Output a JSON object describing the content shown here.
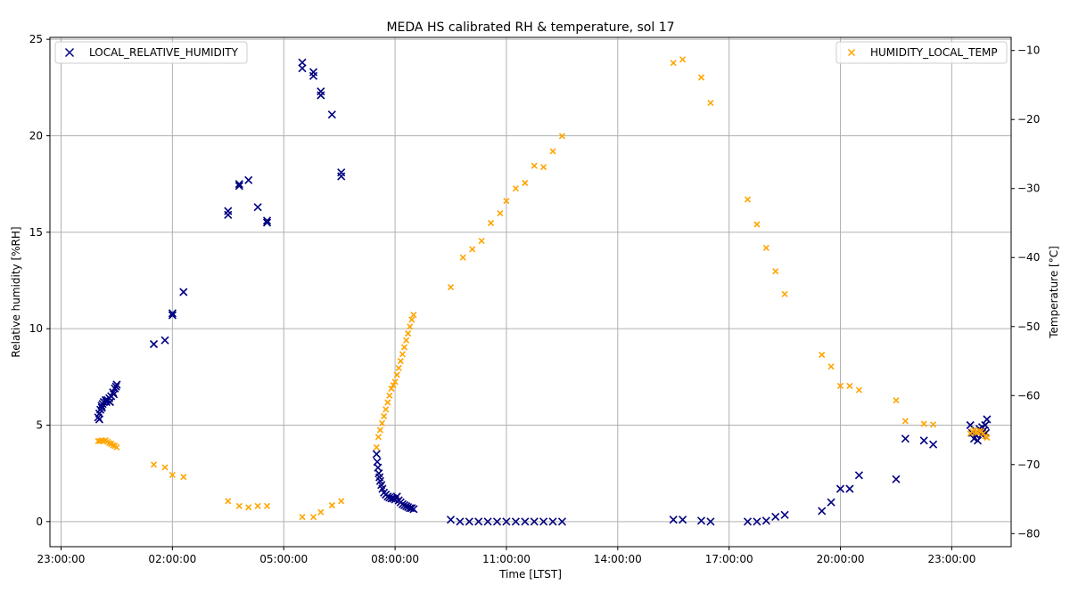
{
  "chart_data": {
    "type": "scatter",
    "title": "MEDA HS calibrated RH & temperature, sol 17",
    "xlabel": "Time [LTST]",
    "ylabel": "Relative humidity [%RH]",
    "y2label": "Temperature [$^\\circ$C]",
    "y2label_display": "Temperature [°C]",
    "x_unit": "hours LTST (continuous, 23:00 = 23.0, next-day times > 24)",
    "xlim": [
      22.7,
      48.6
    ],
    "ylim": [
      -1.3,
      25.1
    ],
    "y2lim": [
      -81.9,
      -8.1
    ],
    "x_ticks": [
      {
        "value": 23,
        "label": "23:00:00"
      },
      {
        "value": 26,
        "label": "02:00:00"
      },
      {
        "value": 29,
        "label": "05:00:00"
      },
      {
        "value": 32,
        "label": "08:00:00"
      },
      {
        "value": 35,
        "label": "11:00:00"
      },
      {
        "value": 38,
        "label": "14:00:00"
      },
      {
        "value": 41,
        "label": "17:00:00"
      },
      {
        "value": 44,
        "label": "20:00:00"
      },
      {
        "value": 47,
        "label": "23:00:00"
      }
    ],
    "y_ticks": [
      0,
      5,
      10,
      15,
      20,
      25
    ],
    "y2_ticks": [
      -80,
      -70,
      -60,
      -50,
      -40,
      -30,
      -20,
      -10
    ],
    "grid": true,
    "series": [
      {
        "name": "LOCAL_RELATIVE_HUMIDITY",
        "axis": "left",
        "marker": "x",
        "color": "#000080",
        "legend_position": "upper left",
        "points": [
          [
            24.0,
            5.4
          ],
          [
            24.03,
            5.6
          ],
          [
            24.06,
            5.8
          ],
          [
            24.09,
            6.0
          ],
          [
            24.12,
            6.1
          ],
          [
            24.15,
            6.2
          ],
          [
            24.2,
            6.3
          ],
          [
            24.25,
            6.3
          ],
          [
            24.3,
            6.4
          ],
          [
            24.35,
            6.5
          ],
          [
            24.4,
            6.7
          ],
          [
            24.45,
            6.9
          ],
          [
            24.5,
            7.1
          ],
          [
            24.03,
            5.3
          ],
          [
            24.1,
            5.9
          ],
          [
            24.22,
            6.2
          ],
          [
            24.32,
            6.2
          ],
          [
            24.42,
            6.6
          ],
          [
            24.48,
            7.0
          ],
          [
            25.5,
            9.2
          ],
          [
            25.8,
            9.4
          ],
          [
            26.0,
            10.8
          ],
          [
            26.0,
            10.7
          ],
          [
            26.3,
            11.9
          ],
          [
            27.5,
            15.9
          ],
          [
            27.5,
            16.1
          ],
          [
            27.8,
            17.5
          ],
          [
            27.8,
            17.4
          ],
          [
            28.05,
            17.7
          ],
          [
            28.3,
            16.3
          ],
          [
            28.55,
            15.5
          ],
          [
            28.55,
            15.6
          ],
          [
            29.5,
            23.8
          ],
          [
            29.5,
            23.5
          ],
          [
            29.8,
            23.3
          ],
          [
            29.8,
            23.1
          ],
          [
            30.0,
            22.3
          ],
          [
            30.0,
            22.1
          ],
          [
            30.3,
            21.1
          ],
          [
            30.55,
            18.1
          ],
          [
            30.55,
            17.9
          ],
          [
            31.5,
            3.5
          ],
          [
            31.52,
            3.1
          ],
          [
            31.54,
            2.8
          ],
          [
            31.56,
            2.5
          ],
          [
            31.58,
            2.3
          ],
          [
            31.6,
            2.1
          ],
          [
            31.63,
            1.9
          ],
          [
            31.66,
            1.7
          ],
          [
            31.7,
            1.5
          ],
          [
            31.75,
            1.4
          ],
          [
            31.8,
            1.3
          ],
          [
            31.85,
            1.25
          ],
          [
            31.9,
            1.2
          ],
          [
            31.95,
            1.2
          ],
          [
            32.0,
            1.15
          ],
          [
            32.05,
            1.3
          ],
          [
            32.1,
            1.1
          ],
          [
            32.15,
            1.0
          ],
          [
            32.2,
            0.9
          ],
          [
            32.25,
            0.85
          ],
          [
            32.3,
            0.8
          ],
          [
            32.35,
            0.75
          ],
          [
            32.4,
            0.7
          ],
          [
            32.45,
            0.7
          ],
          [
            32.5,
            0.65
          ],
          [
            33.5,
            0.1
          ],
          [
            33.75,
            0.0
          ],
          [
            34.0,
            0.0
          ],
          [
            34.25,
            0.0
          ],
          [
            34.5,
            0.0
          ],
          [
            34.75,
            0.0
          ],
          [
            35.0,
            0.0
          ],
          [
            35.25,
            0.0
          ],
          [
            35.5,
            0.0
          ],
          [
            35.75,
            0.0
          ],
          [
            36.0,
            0.0
          ],
          [
            36.25,
            0.0
          ],
          [
            36.5,
            0.0
          ],
          [
            39.5,
            0.1
          ],
          [
            39.75,
            0.1
          ],
          [
            40.25,
            0.05
          ],
          [
            40.5,
            0.0
          ],
          [
            41.5,
            0.0
          ],
          [
            41.75,
            0.0
          ],
          [
            42.0,
            0.05
          ],
          [
            42.25,
            0.25
          ],
          [
            42.5,
            0.35
          ],
          [
            43.5,
            0.55
          ],
          [
            43.75,
            1.0
          ],
          [
            44.0,
            1.7
          ],
          [
            44.25,
            1.7
          ],
          [
            44.5,
            2.4
          ],
          [
            45.5,
            2.2
          ],
          [
            45.75,
            4.3
          ],
          [
            46.25,
            4.2
          ],
          [
            46.5,
            4.0
          ],
          [
            47.5,
            5.0
          ],
          [
            47.55,
            4.6
          ],
          [
            47.6,
            4.3
          ],
          [
            47.65,
            4.5
          ],
          [
            47.7,
            4.2
          ],
          [
            47.75,
            4.8
          ],
          [
            47.8,
            4.5
          ],
          [
            47.85,
            4.7
          ],
          [
            47.9,
            5.0
          ],
          [
            47.95,
            5.3
          ],
          [
            47.92,
            4.6
          ],
          [
            47.82,
            4.9
          ]
        ]
      },
      {
        "name": "HUMIDITY_LOCAL_TEMP",
        "axis": "right",
        "marker": "x",
        "color": "#FFA500",
        "legend_position": "upper right",
        "points": [
          [
            24.0,
            -66.6
          ],
          [
            24.05,
            -66.6
          ],
          [
            24.1,
            -66.5
          ],
          [
            24.15,
            -66.6
          ],
          [
            24.2,
            -66.5
          ],
          [
            24.25,
            -66.7
          ],
          [
            24.3,
            -66.9
          ],
          [
            24.35,
            -67.0
          ],
          [
            24.4,
            -67.2
          ],
          [
            24.45,
            -67.3
          ],
          [
            24.5,
            -67.5
          ],
          [
            25.5,
            -70.0
          ],
          [
            25.8,
            -70.4
          ],
          [
            26.0,
            -71.5
          ],
          [
            26.3,
            -71.8
          ],
          [
            27.5,
            -75.3
          ],
          [
            27.8,
            -76.0
          ],
          [
            28.05,
            -76.2
          ],
          [
            28.3,
            -76.0
          ],
          [
            28.55,
            -76.0
          ],
          [
            29.5,
            -77.6
          ],
          [
            29.8,
            -77.6
          ],
          [
            30.0,
            -76.9
          ],
          [
            30.3,
            -75.9
          ],
          [
            30.55,
            -75.3
          ],
          [
            31.5,
            -67.5
          ],
          [
            31.55,
            -66.0
          ],
          [
            31.6,
            -65.0
          ],
          [
            31.65,
            -64.0
          ],
          [
            31.7,
            -63.0
          ],
          [
            31.75,
            -62.0
          ],
          [
            31.8,
            -61.0
          ],
          [
            31.85,
            -60.0
          ],
          [
            31.9,
            -59.0
          ],
          [
            31.95,
            -58.5
          ],
          [
            32.0,
            -58.0
          ],
          [
            32.05,
            -57.0
          ],
          [
            32.1,
            -56.0
          ],
          [
            32.15,
            -55.0
          ],
          [
            32.2,
            -54.0
          ],
          [
            32.25,
            -53.0
          ],
          [
            32.3,
            -52.0
          ],
          [
            32.35,
            -51.0
          ],
          [
            32.4,
            -50.0
          ],
          [
            32.45,
            -49.0
          ],
          [
            32.5,
            -48.3
          ],
          [
            33.5,
            -44.3
          ],
          [
            33.83,
            -40.0
          ],
          [
            34.08,
            -38.8
          ],
          [
            34.33,
            -37.6
          ],
          [
            34.58,
            -35.0
          ],
          [
            34.83,
            -33.6
          ],
          [
            35.0,
            -31.8
          ],
          [
            35.25,
            -30.0
          ],
          [
            35.5,
            -29.2
          ],
          [
            35.75,
            -26.7
          ],
          [
            36.0,
            -26.9
          ],
          [
            36.25,
            -24.6
          ],
          [
            36.5,
            -22.4
          ],
          [
            39.5,
            -11.8
          ],
          [
            39.75,
            -11.3
          ],
          [
            40.25,
            -13.9
          ],
          [
            40.5,
            -17.6
          ],
          [
            41.5,
            -31.6
          ],
          [
            41.75,
            -35.2
          ],
          [
            42.0,
            -38.6
          ],
          [
            42.25,
            -42.0
          ],
          [
            42.5,
            -45.3
          ],
          [
            43.5,
            -54.1
          ],
          [
            43.75,
            -55.8
          ],
          [
            44.0,
            -58.6
          ],
          [
            44.25,
            -58.6
          ],
          [
            44.5,
            -59.2
          ],
          [
            45.5,
            -60.7
          ],
          [
            45.75,
            -63.7
          ],
          [
            46.25,
            -64.1
          ],
          [
            46.5,
            -64.2
          ],
          [
            47.5,
            -65.5
          ],
          [
            47.55,
            -65.2
          ],
          [
            47.6,
            -65.0
          ],
          [
            47.65,
            -65.3
          ],
          [
            47.7,
            -65.4
          ],
          [
            47.75,
            -65.1
          ],
          [
            47.8,
            -65.2
          ],
          [
            47.85,
            -65.5
          ],
          [
            47.9,
            -65.9
          ],
          [
            47.95,
            -66.1
          ]
        ]
      }
    ]
  }
}
